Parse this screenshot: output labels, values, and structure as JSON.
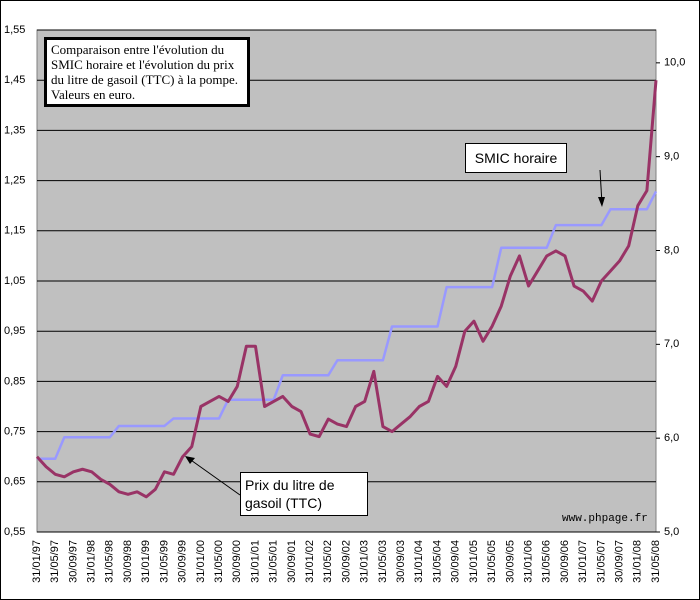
{
  "chart_data": {
    "type": "line",
    "title": "Comparaison entre l'évolution du SMIC horaire et l'évolution du prix du litre de gasoil (TTC) à la pompe. Valeurs en euro.",
    "annotations": [
      "www.phpage.fr"
    ],
    "categories": [
      "31/01/97",
      null,
      "31/05/97",
      null,
      "30/09/97",
      null,
      "31/01/98",
      null,
      "31/05/98",
      null,
      "30/09/98",
      null,
      "31/01/99",
      null,
      "31/05/99",
      null,
      "30/09/99",
      null,
      "31/01/00",
      null,
      "31/05/00",
      null,
      "30/09/00",
      null,
      "31/01/01",
      null,
      "31/05/01",
      null,
      "30/09/01",
      null,
      "31/01/02",
      null,
      "31/05/02",
      null,
      "30/09/02",
      null,
      "31/01/03",
      null,
      "31/05/03",
      null,
      "30/09/03",
      null,
      "31/01/04",
      null,
      "31/05/04",
      null,
      "30/09/04",
      null,
      "31/01/05",
      null,
      "31/05/05",
      null,
      "30/09/05",
      null,
      "31/01/06",
      null,
      "31/05/06",
      null,
      "30/09/06",
      null,
      "31/01/07",
      null,
      "31/05/07",
      null,
      "30/09/07",
      null,
      "31/01/08",
      null,
      "31/05/08"
    ],
    "series": [
      {
        "name": "Prix du litre de gasoil (TTC)",
        "color": "#993366",
        "axis": "y",
        "values": [
          0.7,
          0.68,
          0.665,
          0.66,
          0.67,
          0.675,
          0.67,
          0.655,
          0.645,
          0.63,
          0.625,
          0.63,
          0.62,
          0.635,
          0.67,
          0.665,
          0.7,
          0.72,
          0.8,
          0.81,
          0.82,
          0.81,
          0.84,
          0.92,
          0.92,
          0.8,
          0.81,
          0.82,
          0.8,
          0.79,
          0.745,
          0.74,
          0.775,
          0.765,
          0.76,
          0.8,
          0.81,
          0.87,
          0.76,
          0.75,
          0.765,
          0.78,
          0.8,
          0.81,
          0.86,
          0.84,
          0.88,
          0.95,
          0.97,
          0.93,
          0.96,
          1.0,
          1.06,
          1.1,
          1.04,
          1.07,
          1.1,
          1.11,
          1.1,
          1.04,
          1.03,
          1.01,
          1.05,
          1.07,
          1.09,
          1.12,
          1.2,
          1.23,
          1.45
        ]
      },
      {
        "name": "SMIC horaire",
        "color": "#9999ff",
        "axis": "y2",
        "values": [
          5.78,
          5.78,
          5.78,
          6.01,
          6.01,
          6.01,
          6.01,
          6.01,
          6.01,
          6.13,
          6.13,
          6.13,
          6.13,
          6.13,
          6.13,
          6.21,
          6.21,
          6.21,
          6.21,
          6.21,
          6.21,
          6.41,
          6.41,
          6.41,
          6.41,
          6.41,
          6.41,
          6.67,
          6.67,
          6.67,
          6.67,
          6.67,
          6.67,
          6.83,
          6.83,
          6.83,
          6.83,
          6.83,
          6.83,
          7.19,
          7.19,
          7.19,
          7.19,
          7.19,
          7.19,
          7.61,
          7.61,
          7.61,
          7.61,
          7.61,
          7.61,
          8.03,
          8.03,
          8.03,
          8.03,
          8.03,
          8.03,
          8.27,
          8.27,
          8.27,
          8.27,
          8.27,
          8.27,
          8.44,
          8.44,
          8.44,
          8.44,
          8.44,
          8.63
        ]
      }
    ],
    "ylim": [
      0.55,
      1.55
    ],
    "yticks": [
      {
        "value": 0.55,
        "label": "0,55"
      },
      {
        "value": 0.65,
        "label": "0,65"
      },
      {
        "value": 0.75,
        "label": "0,75"
      },
      {
        "value": 0.85,
        "label": "0,85"
      },
      {
        "value": 0.95,
        "label": "0,95"
      },
      {
        "value": 1.05,
        "label": "1,05"
      },
      {
        "value": 1.15,
        "label": "1,15"
      },
      {
        "value": 1.25,
        "label": "1,25"
      },
      {
        "value": 1.35,
        "label": "1,35"
      },
      {
        "value": 1.45,
        "label": "1,45"
      },
      {
        "value": 1.55,
        "label": "1,55"
      }
    ],
    "y2lim": [
      5,
      10.35
    ],
    "y2ticks": [
      {
        "value": 5,
        "label": "5,0"
      },
      {
        "value": 6,
        "label": "6,0"
      },
      {
        "value": 7,
        "label": "7,0"
      },
      {
        "value": 8,
        "label": "8,0"
      },
      {
        "value": 9,
        "label": "9,0"
      },
      {
        "value": 10,
        "label": "10,0"
      }
    ],
    "grid": true
  }
}
